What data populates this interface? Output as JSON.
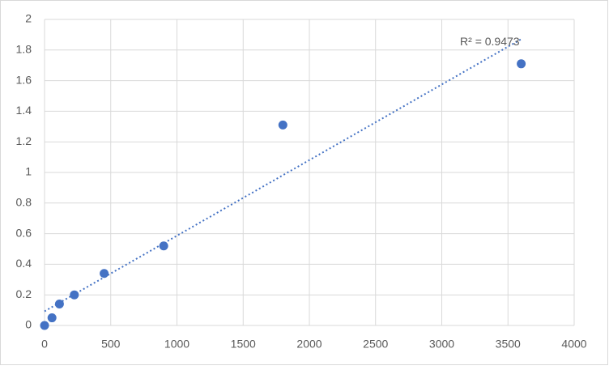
{
  "chart_data": {
    "type": "scatter",
    "x": [
      0,
      56.25,
      112.5,
      225,
      450,
      900,
      1800,
      3600
    ],
    "values": [
      0,
      0.05,
      0.14,
      0.2,
      0.34,
      0.52,
      1.31,
      1.71
    ],
    "color": "#4472c4",
    "xlim": [
      0,
      4000
    ],
    "xticks": [
      0,
      500,
      1000,
      1500,
      2000,
      2500,
      3000,
      3500,
      4000
    ],
    "ylim": [
      0,
      2
    ],
    "yticks": [
      0,
      0.2,
      0.4,
      0.6,
      0.8,
      1,
      1.2,
      1.4,
      1.6,
      1.8,
      2
    ],
    "grid": true,
    "trendline": "linear",
    "annotation": "R² = 0.9473"
  }
}
